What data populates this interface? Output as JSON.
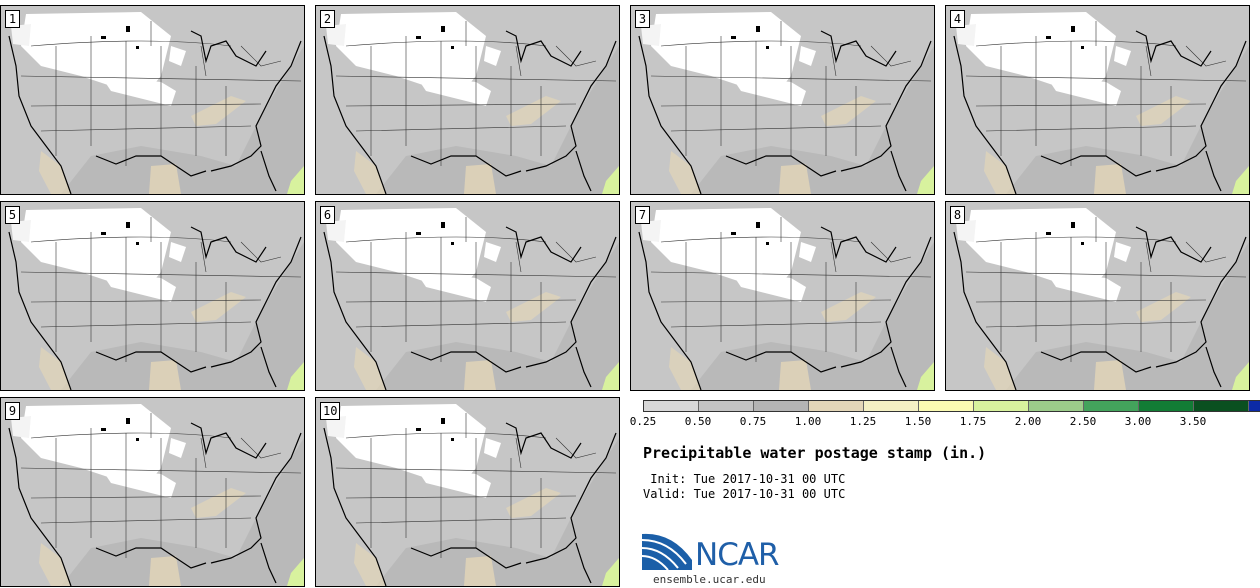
{
  "panels": [
    {
      "label": "1"
    },
    {
      "label": "2"
    },
    {
      "label": "3"
    },
    {
      "label": "4"
    },
    {
      "label": "5"
    },
    {
      "label": "6"
    },
    {
      "label": "7"
    },
    {
      "label": "8"
    },
    {
      "label": "9"
    },
    {
      "label": "10"
    }
  ],
  "colorbar": {
    "ticks": [
      "0.25",
      "0.50",
      "0.75",
      "1.00",
      "1.25",
      "1.50",
      "1.75",
      "2.00",
      "2.50",
      "3.00",
      "3.50"
    ],
    "colors": [
      "#d8d8d8",
      "#c4c4c4",
      "#b4b4b4",
      "#e3d6b8",
      "#f4f0c4",
      "#fafab2",
      "#d8f29e",
      "#9ccc8a",
      "#43a35c",
      "#127c35",
      "#0a5020",
      "#0c2aa6"
    ]
  },
  "title": "Precipitable water postage stamp (in.)",
  "init_line": " Init: Tue 2017-10-31 00 UTC",
  "valid_line": "Valid: Tue 2017-10-31 00 UTC",
  "logo_text": "NCAR",
  "logo_url": "ensemble.ucar.edu"
}
